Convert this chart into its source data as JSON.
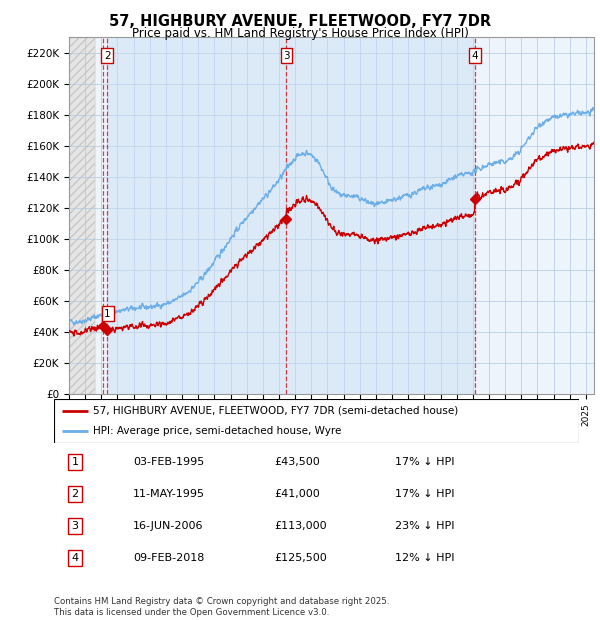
{
  "title_line1": "57, HIGHBURY AVENUE, FLEETWOOD, FY7 7DR",
  "title_line2": "Price paid vs. HM Land Registry's House Price Index (HPI)",
  "ylim": [
    0,
    230000
  ],
  "yticks": [
    0,
    20000,
    40000,
    60000,
    80000,
    100000,
    120000,
    140000,
    160000,
    180000,
    200000,
    220000
  ],
  "ytick_labels": [
    "£0",
    "£20K",
    "£40K",
    "£60K",
    "£80K",
    "£100K",
    "£120K",
    "£140K",
    "£160K",
    "£180K",
    "£200K",
    "£220K"
  ],
  "sale_dates_num": [
    1995.09,
    1995.36,
    2006.46,
    2018.11
  ],
  "sale_prices": [
    43500,
    41000,
    113000,
    125500
  ],
  "sale_labels": [
    "1",
    "2",
    "3",
    "4"
  ],
  "legend_line1": "57, HIGHBURY AVENUE, FLEETWOOD, FY7 7DR (semi-detached house)",
  "legend_line2": "HPI: Average price, semi-detached house, Wyre",
  "table_data": [
    [
      "1",
      "03-FEB-1995",
      "£43,500",
      "17% ↓ HPI"
    ],
    [
      "2",
      "11-MAY-1995",
      "£41,000",
      "17% ↓ HPI"
    ],
    [
      "3",
      "16-JUN-2006",
      "£113,000",
      "23% ↓ HPI"
    ],
    [
      "4",
      "09-FEB-2018",
      "£125,500",
      "12% ↓ HPI"
    ]
  ],
  "footer_text": "Contains HM Land Registry data © Crown copyright and database right 2025.\nThis data is licensed under the Open Government Licence v3.0.",
  "hpi_color": "#6baee8",
  "sale_color": "#cc0000",
  "xmin": 1993.0,
  "xmax": 2025.5,
  "hatch_end": 1994.58,
  "shade_start": 1995.36,
  "shade_end": 2018.11
}
